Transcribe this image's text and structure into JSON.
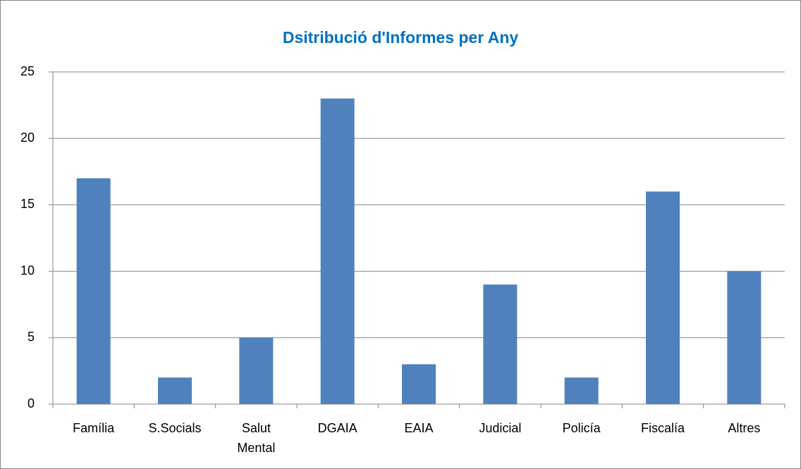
{
  "chart_data": {
    "type": "bar",
    "title": "Dsitribució d'Informes per Any",
    "categories": [
      "Família",
      "S.Socials",
      "Salut Mental",
      "DGAIA",
      "EAIA",
      "Judicial",
      "Policía",
      "Fiscalía",
      "Altres"
    ],
    "values": [
      17,
      2,
      5,
      23,
      3,
      9,
      2,
      16,
      10
    ],
    "color": "#4f81bd",
    "ylim": [
      0,
      25
    ],
    "yticks": [
      0,
      5,
      10,
      15,
      20,
      25
    ],
    "grid": true
  }
}
